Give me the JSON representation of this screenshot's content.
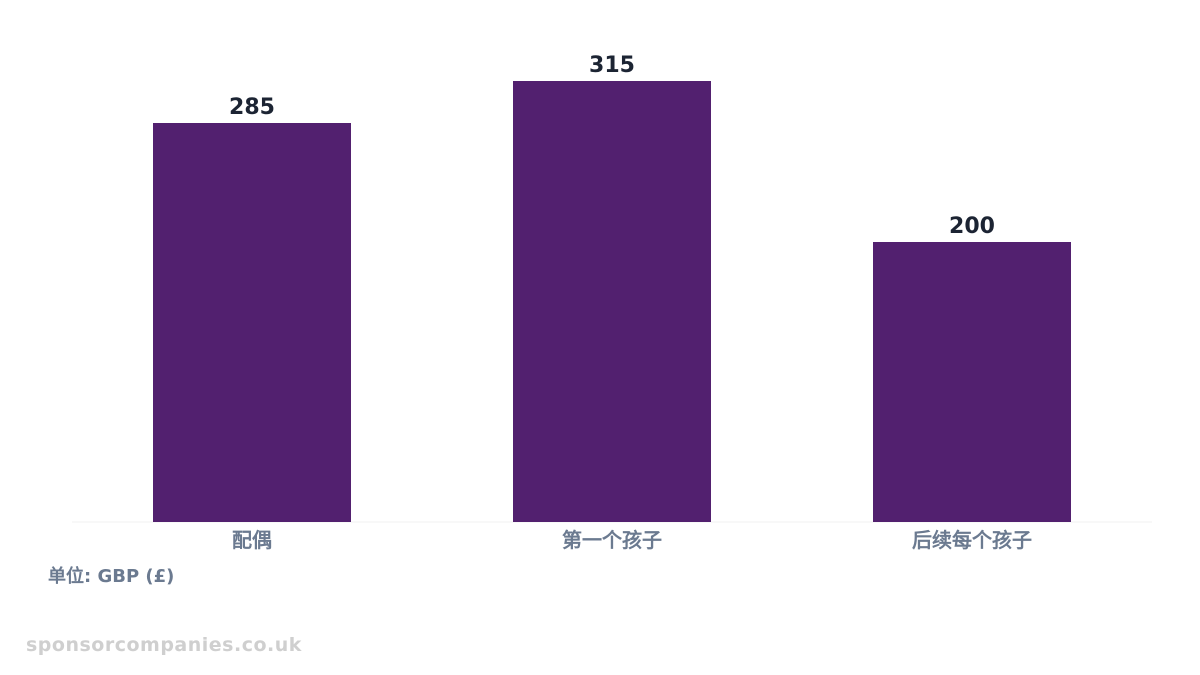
{
  "chart_data": {
    "type": "bar",
    "categories": [
      "配偶",
      "第一个孩子",
      "后续每个孩子"
    ],
    "values": [
      285,
      315,
      200
    ],
    "ylim": [
      0,
      350
    ],
    "grid": false,
    "legend": "none",
    "bar_color": "#52206f",
    "value_label_color": "#1c2433",
    "category_label_color": "#6b7a90"
  },
  "unit_note": "单位: GBP (£)",
  "watermark": "sponsorcompanies.co.uk"
}
